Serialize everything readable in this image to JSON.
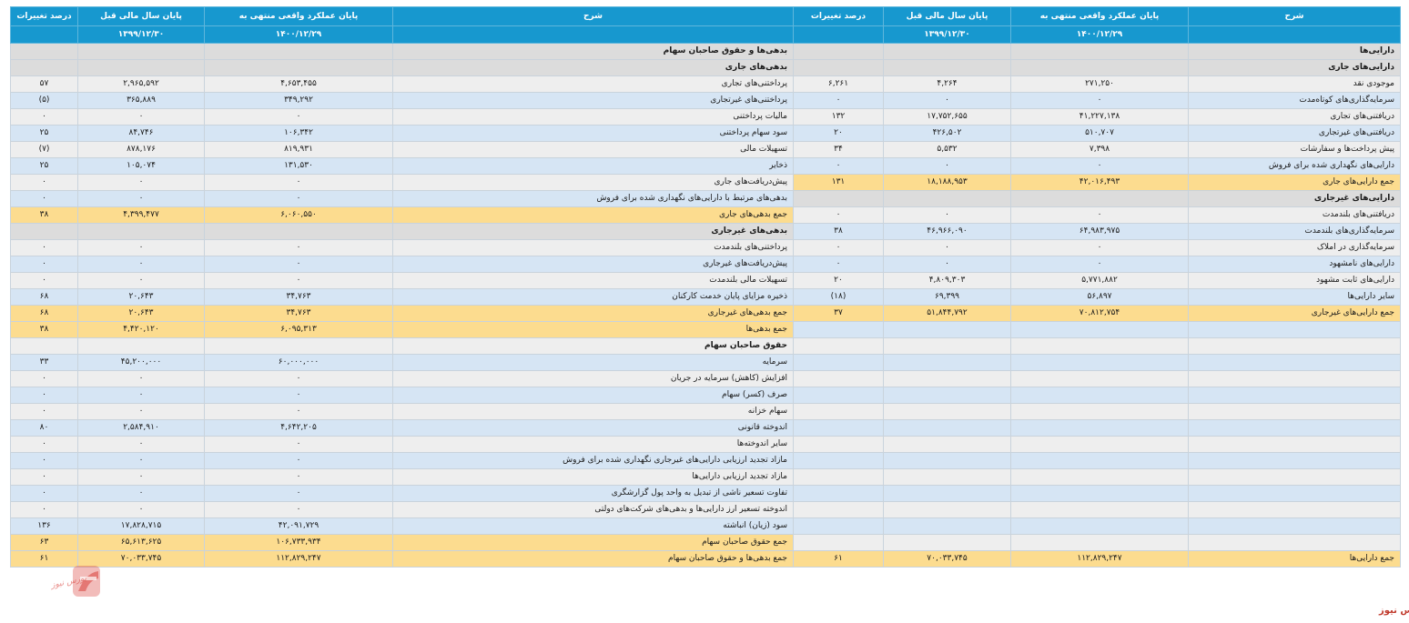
{
  "headers": {
    "right": {
      "desc": "شرح",
      "current": "پایان عملکرد واقعی منتهی به",
      "current_date": "۱۴۰۰/۱۲/۲۹",
      "previous": "پایان سال مالی قبل",
      "previous_date": "۱۳۹۹/۱۲/۳۰",
      "change": "درصد تغییرات"
    },
    "left": {
      "desc": "شرح",
      "current": "پایان عملکرد واقعی منتهی به",
      "current_date": "۱۴۰۰/۱۲/۲۹",
      "previous": "پایان سال مالی قبل",
      "previous_date": "۱۳۹۹/۱۲/۳۰",
      "change": "درصد تغییرات"
    }
  },
  "rows": [
    {
      "s": "gray",
      "r": {
        "d": "دارایی‌ها",
        "c": "",
        "p": "",
        "ch": "",
        "b": true
      },
      "l": {
        "d": "بدهی‌ها و حقوق صاحبان سهام",
        "c": "",
        "p": "",
        "ch": "",
        "b": true
      }
    },
    {
      "s": "gray",
      "r": {
        "d": "دارایی‌های جاری",
        "c": "",
        "p": "",
        "ch": "",
        "b": true
      },
      "l": {
        "d": "بدهی‌های جاری",
        "c": "",
        "p": "",
        "ch": "",
        "b": true
      }
    },
    {
      "s": "c0",
      "r": {
        "d": "موجودی نقد",
        "c": "۲۷۱,۲۵۰",
        "p": "۴,۲۶۴",
        "ch": "۶,۲۶۱"
      },
      "l": {
        "d": "پرداختنی‌های تجاری",
        "c": "۴,۶۵۳,۴۵۵",
        "p": "۲,۹۶۵,۵۹۲",
        "ch": "۵۷"
      }
    },
    {
      "s": "c1",
      "r": {
        "d": "سرمایه‌گذاری‌های کوتاه‌مدت",
        "c": "۰",
        "p": "۰",
        "ch": "۰"
      },
      "l": {
        "d": "پرداختنی‌های غیرتجاری",
        "c": "۳۴۹,۲۹۲",
        "p": "۳۶۵,۸۸۹",
        "ch": "(۵)",
        "neg": true
      }
    },
    {
      "s": "c0",
      "r": {
        "d": "دریافتنی‌های تجاری",
        "c": "۴۱,۲۲۷,۱۳۸",
        "p": "۱۷,۷۵۲,۶۵۵",
        "ch": "۱۳۲"
      },
      "l": {
        "d": "مالیات پرداختنی",
        "c": "۰",
        "p": "۰",
        "ch": "۰"
      }
    },
    {
      "s": "c1",
      "r": {
        "d": "دریافتنی‌های غیرتجاری",
        "c": "۵۱۰,۷۰۷",
        "p": "۴۲۶,۵۰۲",
        "ch": "۲۰"
      },
      "l": {
        "d": "سود سهام پرداختنی",
        "c": "۱۰۶,۳۴۲",
        "p": "۸۴,۷۴۶",
        "ch": "۲۵"
      }
    },
    {
      "s": "c0",
      "r": {
        "d": "پیش پرداخت‌ها و سفارشات",
        "c": "۷,۳۹۸",
        "p": "۵,۵۳۲",
        "ch": "۳۴"
      },
      "l": {
        "d": "تسهیلات مالی",
        "c": "۸۱۹,۹۳۱",
        "p": "۸۷۸,۱۷۶",
        "ch": "(۷)",
        "neg": true
      }
    },
    {
      "s": "c1",
      "r": {
        "d": "دارایی‌های نگهداری شده برای فروش",
        "c": "۰",
        "p": "۰",
        "ch": "۰"
      },
      "l": {
        "d": "ذخایر",
        "c": "۱۳۱,۵۳۰",
        "p": "۱۰۵,۰۷۴",
        "ch": "۲۵"
      }
    },
    {
      "s": "c0",
      "r": {
        "d": "جمع دارایی‌های جاری",
        "c": "۴۲,۰۱۶,۴۹۳",
        "p": "۱۸,۱۸۸,۹۵۳",
        "ch": "۱۳۱",
        "hl": true
      },
      "l": {
        "d": "پیش‌دریافت‌های جاری",
        "c": "۰",
        "p": "۰",
        "ch": "۰"
      }
    },
    {
      "s": "c1",
      "r": {
        "d": "دارایی‌های غیرجاری",
        "c": "",
        "p": "",
        "ch": "",
        "b": true,
        "gray": true
      },
      "l": {
        "d": "بدهی‌های مرتبط با دارایی‌های نگهداری شده برای فروش",
        "c": "۰",
        "p": "۰",
        "ch": "۰"
      }
    },
    {
      "s": "c0",
      "r": {
        "d": "دریافتنی‌های بلندمدت",
        "c": "۰",
        "p": "۰",
        "ch": "۰"
      },
      "l": {
        "d": "جمع بدهی‌های جاری",
        "c": "۶,۰۶۰,۵۵۰",
        "p": "۴,۳۹۹,۴۷۷",
        "ch": "۳۸",
        "hl": true
      }
    },
    {
      "s": "c1",
      "r": {
        "d": "سرمایه‌گذاری‌های بلندمدت",
        "c": "۶۴,۹۸۳,۹۷۵",
        "p": "۴۶,۹۶۶,۰۹۰",
        "ch": "۳۸"
      },
      "l": {
        "d": "بدهی‌های غیرجاری",
        "c": "",
        "p": "",
        "ch": "",
        "b": true,
        "gray": true
      }
    },
    {
      "s": "c0",
      "r": {
        "d": "سرمایه‌گذاری در املاک",
        "c": "۰",
        "p": "۰",
        "ch": "۰"
      },
      "l": {
        "d": "پرداختنی‌های بلندمدت",
        "c": "۰",
        "p": "۰",
        "ch": "۰"
      }
    },
    {
      "s": "c1",
      "r": {
        "d": "دارایی‌های نامشهود",
        "c": "۰",
        "p": "۰",
        "ch": "۰"
      },
      "l": {
        "d": "پیش‌دریافت‌های غیرجاری",
        "c": "۰",
        "p": "۰",
        "ch": "۰"
      }
    },
    {
      "s": "c0",
      "r": {
        "d": "دارایی‌های ثابت مشهود",
        "c": "۵,۷۷۱,۸۸۲",
        "p": "۴,۸۰۹,۳۰۳",
        "ch": "۲۰"
      },
      "l": {
        "d": "تسهیلات مالی بلندمدت",
        "c": "۰",
        "p": "۰",
        "ch": "۰"
      }
    },
    {
      "s": "c1",
      "r": {
        "d": "سایر دارایی‌ها",
        "c": "۵۶,۸۹۷",
        "p": "۶۹,۳۹۹",
        "ch": "(۱۸)",
        "neg": true
      },
      "l": {
        "d": "ذخیره مزایای پایان خدمت کارکنان",
        "c": "۳۴,۷۶۳",
        "p": "۲۰,۶۴۳",
        "ch": "۶۸"
      }
    },
    {
      "s": "c0",
      "r": {
        "d": "جمع دارایی‌های غیرجاری",
        "c": "۷۰,۸۱۲,۷۵۴",
        "p": "۵۱,۸۴۴,۷۹۲",
        "ch": "۳۷",
        "hl": true
      },
      "l": {
        "d": "جمع بدهی‌های غیرجاری",
        "c": "۳۴,۷۶۳",
        "p": "۲۰,۶۴۳",
        "ch": "۶۸",
        "hl": true
      }
    },
    {
      "s": "c1",
      "r": {
        "d": "",
        "c": "",
        "p": "",
        "ch": ""
      },
      "l": {
        "d": "جمع بدهی‌ها",
        "c": "۶,۰۹۵,۳۱۳",
        "p": "۴,۴۲۰,۱۲۰",
        "ch": "۳۸",
        "hl": true
      }
    },
    {
      "s": "c0",
      "r": {
        "d": "",
        "c": "",
        "p": "",
        "ch": ""
      },
      "l": {
        "d": "حقوق صاحبان سهام",
        "c": "",
        "p": "",
        "ch": "",
        "b": true
      }
    },
    {
      "s": "c1",
      "r": {
        "d": "",
        "c": "",
        "p": "",
        "ch": ""
      },
      "l": {
        "d": "سرمایه",
        "c": "۶۰,۰۰۰,۰۰۰",
        "p": "۴۵,۲۰۰,۰۰۰",
        "ch": "۳۳"
      }
    },
    {
      "s": "c0",
      "r": {
        "d": "",
        "c": "",
        "p": "",
        "ch": ""
      },
      "l": {
        "d": "افزایش (کاهش) سرمایه در جریان",
        "c": "۰",
        "p": "۰",
        "ch": "۰"
      }
    },
    {
      "s": "c1",
      "r": {
        "d": "",
        "c": "",
        "p": "",
        "ch": ""
      },
      "l": {
        "d": "صرف (کسر) سهام",
        "c": "۰",
        "p": "۰",
        "ch": "۰"
      }
    },
    {
      "s": "c0",
      "r": {
        "d": "",
        "c": "",
        "p": "",
        "ch": ""
      },
      "l": {
        "d": "سهام خزانه",
        "c": "۰",
        "p": "۰",
        "ch": "۰"
      }
    },
    {
      "s": "c1",
      "r": {
        "d": "",
        "c": "",
        "p": "",
        "ch": ""
      },
      "l": {
        "d": "اندوخته قانونی",
        "c": "۴,۶۴۲,۲۰۵",
        "p": "۲,۵۸۴,۹۱۰",
        "ch": "۸۰"
      }
    },
    {
      "s": "c0",
      "r": {
        "d": "",
        "c": "",
        "p": "",
        "ch": ""
      },
      "l": {
        "d": "سایر اندوخته‌ها",
        "c": "۰",
        "p": "۰",
        "ch": "۰"
      }
    },
    {
      "s": "c1",
      "r": {
        "d": "",
        "c": "",
        "p": "",
        "ch": ""
      },
      "l": {
        "d": "مازاد تجدید ارزیابی دارایی‌های غیرجاری نگهداری شده برای فروش",
        "c": "۰",
        "p": "۰",
        "ch": "۰"
      }
    },
    {
      "s": "c0",
      "r": {
        "d": "",
        "c": "",
        "p": "",
        "ch": ""
      },
      "l": {
        "d": "مازاد تجدید ارزیابی دارایی‌ها",
        "c": "۰",
        "p": "۰",
        "ch": "۰"
      }
    },
    {
      "s": "c1",
      "r": {
        "d": "",
        "c": "",
        "p": "",
        "ch": ""
      },
      "l": {
        "d": "تفاوت تسعیر ناشی از تبدیل به واحد پول گزارشگری",
        "c": "۰",
        "p": "۰",
        "ch": "۰"
      }
    },
    {
      "s": "c0",
      "r": {
        "d": "",
        "c": "",
        "p": "",
        "ch": ""
      },
      "l": {
        "d": "اندوخته تسعیر ارز دارایی‌ها و بدهی‌های شرکت‌های دولتی",
        "c": "۰",
        "p": "۰",
        "ch": "۰"
      }
    },
    {
      "s": "c1",
      "r": {
        "d": "",
        "c": "",
        "p": "",
        "ch": ""
      },
      "l": {
        "d": "سود (زیان) انباشته",
        "c": "۴۲,۰۹۱,۷۲۹",
        "p": "۱۷,۸۲۸,۷۱۵",
        "ch": "۱۳۶"
      }
    },
    {
      "s": "c0",
      "r": {
        "d": "",
        "c": "",
        "p": "",
        "ch": ""
      },
      "l": {
        "d": "جمع حقوق صاحبان سهام",
        "c": "۱۰۶,۷۳۳,۹۳۴",
        "p": "۶۵,۶۱۳,۶۲۵",
        "ch": "۶۳",
        "hl": true
      }
    },
    {
      "s": "c0",
      "r": {
        "d": "جمع دارایی‌ها",
        "c": "۱۱۲,۸۲۹,۲۴۷",
        "p": "۷۰,۰۳۳,۷۴۵",
        "ch": "۶۱"
      },
      "l": {
        "d": "جمع بدهی‌ها و حقوق صاحبان سهام",
        "c": "۱۱۲,۸۲۹,۲۴۷",
        "p": "۷۰,۰۳۳,۷۴۵",
        "ch": "۶۱"
      },
      "all_hl": true
    }
  ],
  "brand": "بورس نیوز",
  "logo": {
    "text": "بورس نیوز",
    "color": "#c0392b",
    "icon": "bourse-news-logo"
  }
}
